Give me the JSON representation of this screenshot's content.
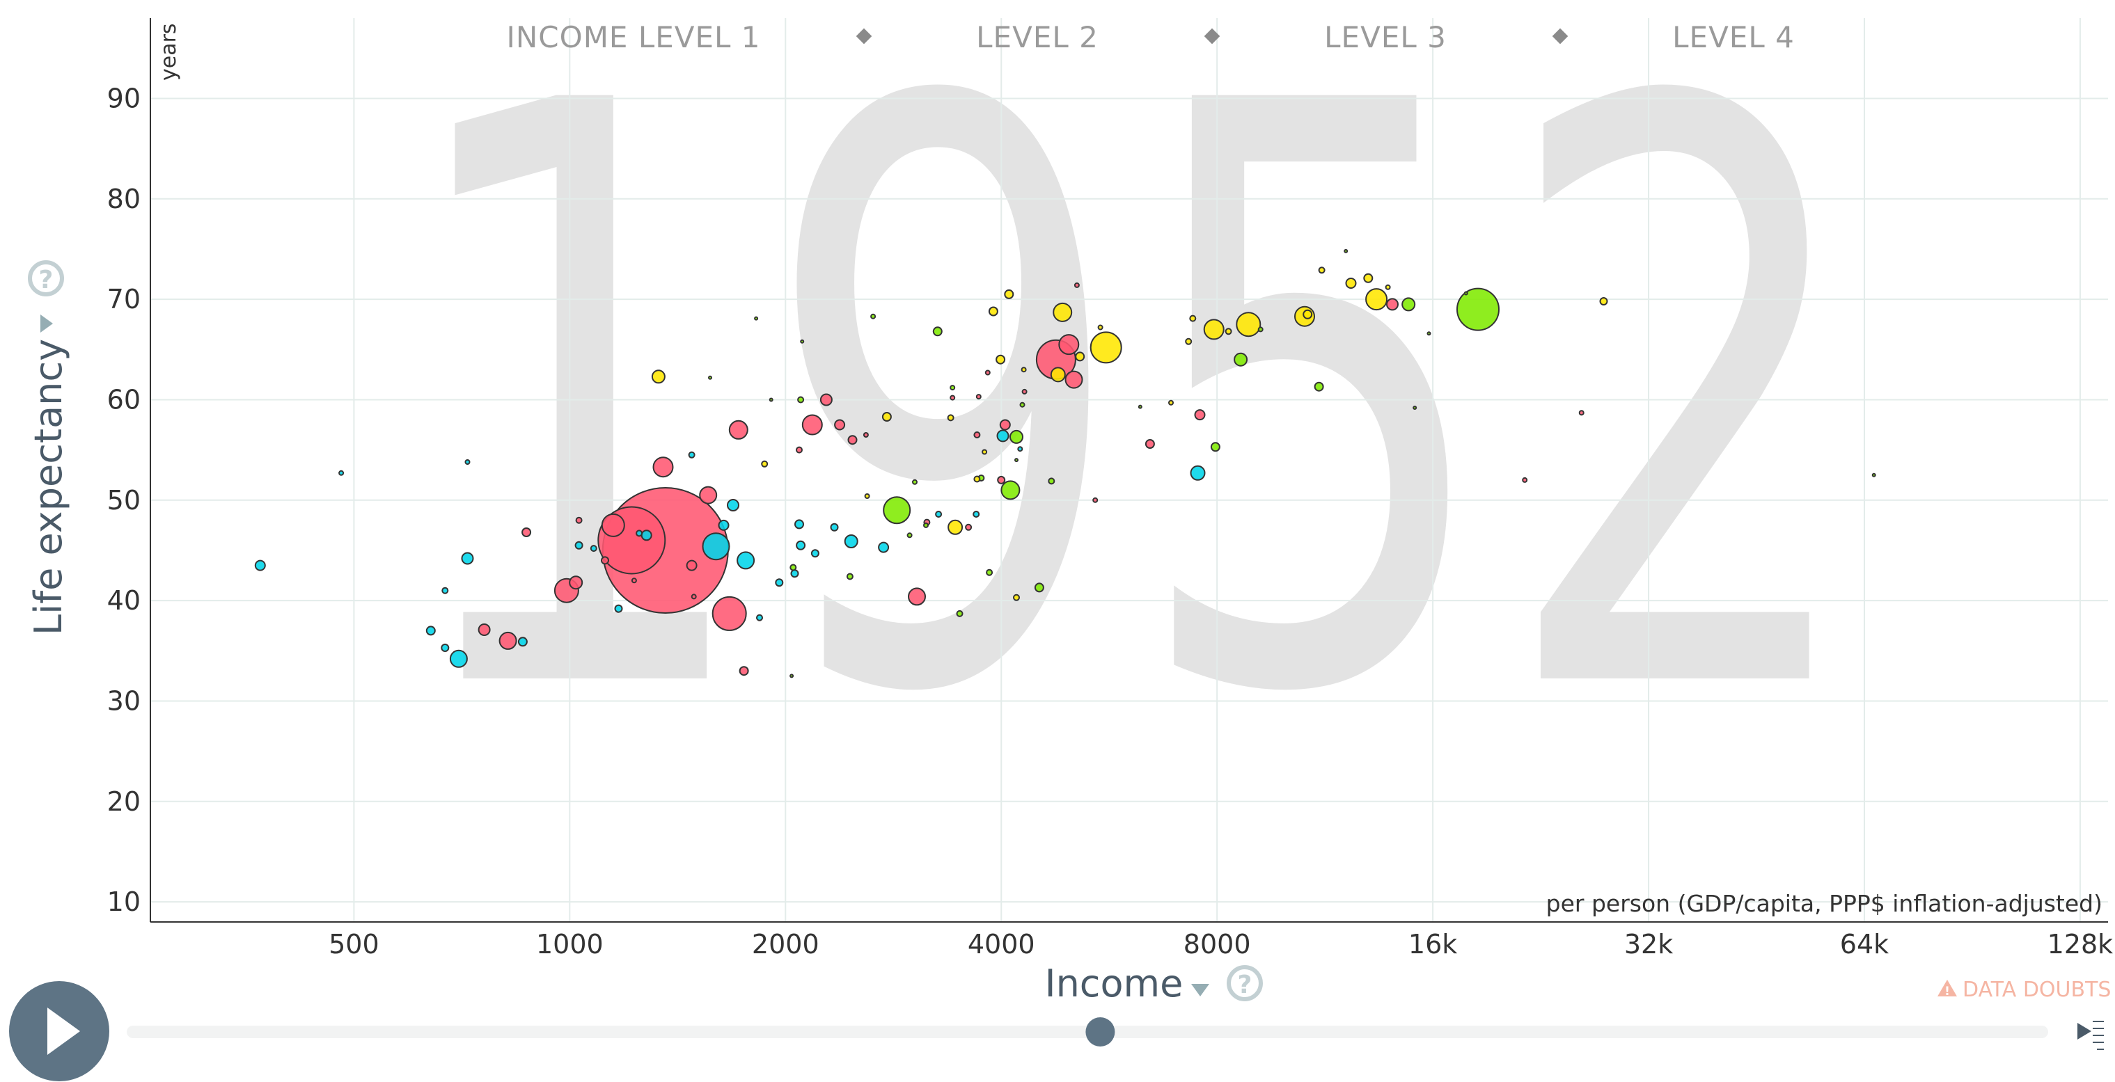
{
  "chart_data": {
    "type": "scatter",
    "title": "",
    "year": "1952",
    "xlabel": "Income",
    "x_unit": "per person (GDP/capita, PPP$ inflation-adjusted)",
    "ylabel": "Life expectancy",
    "y_unit": "years",
    "x_scale": "log2",
    "xlim": [
      260,
      140000
    ],
    "ylim": [
      8,
      98
    ],
    "x_ticks": [
      {
        "value": 500,
        "label": "500"
      },
      {
        "value": 1000,
        "label": "1000"
      },
      {
        "value": 2000,
        "label": "2000"
      },
      {
        "value": 4000,
        "label": "4000"
      },
      {
        "value": 8000,
        "label": "8000"
      },
      {
        "value": 16000,
        "label": "16k"
      },
      {
        "value": 32000,
        "label": "32k"
      },
      {
        "value": 64000,
        "label": "64k"
      },
      {
        "value": 128000,
        "label": "128k"
      }
    ],
    "y_ticks": [
      {
        "value": 10,
        "label": "10"
      },
      {
        "value": 20,
        "label": "20"
      },
      {
        "value": 30,
        "label": "30"
      },
      {
        "value": 40,
        "label": "40"
      },
      {
        "value": 50,
        "label": "50"
      },
      {
        "value": 60,
        "label": "60"
      },
      {
        "value": 70,
        "label": "70"
      },
      {
        "value": 80,
        "label": "80"
      },
      {
        "value": 90,
        "label": "90"
      }
    ],
    "grid": true,
    "income_levels": [
      "INCOME LEVEL 1",
      "LEVEL 2",
      "LEVEL 3",
      "LEVEL 4"
    ],
    "colors": {
      "africa": "#00d5e9",
      "asia": "#ff5872",
      "americas": "#7feb00",
      "europe": "#ffe700",
      "stroke": "#333333",
      "grid": "#e3ecea",
      "watermark": "#e3e3e3"
    },
    "series": [
      {
        "color": "#ff5872",
        "points": [
          {
            "x": 1360,
            "y": 45,
            "s": 90
          },
          {
            "x": 1220,
            "y": 46,
            "s": 48
          },
          {
            "x": 1150,
            "y": 47.5,
            "s": 16
          },
          {
            "x": 1350,
            "y": 53.3,
            "s": 14
          },
          {
            "x": 1560,
            "y": 50.5,
            "s": 12
          },
          {
            "x": 1720,
            "y": 57,
            "s": 13
          },
          {
            "x": 1670,
            "y": 38.7,
            "s": 24
          },
          {
            "x": 990,
            "y": 41,
            "s": 17
          },
          {
            "x": 1020,
            "y": 41.8,
            "s": 9
          },
          {
            "x": 760,
            "y": 37.1,
            "s": 8
          },
          {
            "x": 820,
            "y": 36,
            "s": 12
          },
          {
            "x": 1480,
            "y": 43.5,
            "s": 7
          },
          {
            "x": 2180,
            "y": 57.5,
            "s": 14
          },
          {
            "x": 2280,
            "y": 60,
            "s": 8
          },
          {
            "x": 2380,
            "y": 57.5,
            "s": 7
          },
          {
            "x": 2480,
            "y": 56,
            "s": 6
          },
          {
            "x": 3050,
            "y": 40.4,
            "s": 12
          },
          {
            "x": 1750,
            "y": 33,
            "s": 6
          },
          {
            "x": 4770,
            "y": 64,
            "s": 28
          },
          {
            "x": 4970,
            "y": 65.5,
            "s": 14
          },
          {
            "x": 5050,
            "y": 62,
            "s": 12
          },
          {
            "x": 4050,
            "y": 57.5,
            "s": 7
          },
          {
            "x": 6450,
            "y": 55.6,
            "s": 6
          },
          {
            "x": 7570,
            "y": 58.5,
            "s": 7
          },
          {
            "x": 14050,
            "y": 69.5,
            "s": 8
          },
          {
            "x": 4000,
            "y": 52,
            "s": 5
          },
          {
            "x": 870,
            "y": 46.8,
            "s": 6
          },
          {
            "x": 1120,
            "y": 44,
            "s": 5
          },
          {
            "x": 1030,
            "y": 48,
            "s": 4
          },
          {
            "x": 3600,
            "y": 47.3,
            "s": 4
          },
          {
            "x": 3150,
            "y": 47.8,
            "s": 4
          },
          {
            "x": 3700,
            "y": 56.5,
            "s": 4
          },
          {
            "x": 1230,
            "y": 42,
            "s": 3
          },
          {
            "x": 2090,
            "y": 55,
            "s": 4
          },
          {
            "x": 25800,
            "y": 58.7,
            "s": 3
          },
          {
            "x": 21500,
            "y": 52,
            "s": 3
          }
        ]
      },
      {
        "color": "#00d5e9",
        "points": [
          {
            "x": 1600,
            "y": 45.4,
            "s": 19
          },
          {
            "x": 1760,
            "y": 44,
            "s": 12
          },
          {
            "x": 1690,
            "y": 49.5,
            "s": 8
          },
          {
            "x": 1640,
            "y": 47.5,
            "s": 7
          },
          {
            "x": 1280,
            "y": 46.5,
            "s": 7
          },
          {
            "x": 700,
            "y": 34.2,
            "s": 12
          },
          {
            "x": 720,
            "y": 44.2,
            "s": 8
          },
          {
            "x": 370,
            "y": 43.5,
            "s": 7
          },
          {
            "x": 2090,
            "y": 47.6,
            "s": 6
          },
          {
            "x": 2100,
            "y": 45.5,
            "s": 6
          },
          {
            "x": 2470,
            "y": 45.9,
            "s": 9
          },
          {
            "x": 2740,
            "y": 45.3,
            "s": 7
          },
          {
            "x": 2340,
            "y": 47.3,
            "s": 5
          },
          {
            "x": 2200,
            "y": 44.7,
            "s": 5
          },
          {
            "x": 2060,
            "y": 42.7,
            "s": 5
          },
          {
            "x": 1960,
            "y": 41.8,
            "s": 5
          },
          {
            "x": 4020,
            "y": 56.4,
            "s": 8
          },
          {
            "x": 7520,
            "y": 52.7,
            "s": 10
          },
          {
            "x": 640,
            "y": 37,
            "s": 6
          },
          {
            "x": 860,
            "y": 35.9,
            "s": 6
          },
          {
            "x": 670,
            "y": 35.3,
            "s": 5
          },
          {
            "x": 1030,
            "y": 45.5,
            "s": 5
          },
          {
            "x": 1170,
            "y": 39.2,
            "s": 5
          },
          {
            "x": 1840,
            "y": 38.3,
            "s": 4
          },
          {
            "x": 1080,
            "y": 45.2,
            "s": 4
          },
          {
            "x": 670,
            "y": 41,
            "s": 4
          },
          {
            "x": 480,
            "y": 52.7,
            "s": 3
          },
          {
            "x": 1480,
            "y": 54.5,
            "s": 4
          },
          {
            "x": 720,
            "y": 53.8,
            "s": 3
          },
          {
            "x": 3690,
            "y": 48.6,
            "s": 4
          },
          {
            "x": 3270,
            "y": 48.6,
            "s": 4
          },
          {
            "x": 4250,
            "y": 55.1,
            "s": 3
          },
          {
            "x": 1250,
            "y": 46.7,
            "s": 4
          }
        ]
      },
      {
        "color": "#7feb00",
        "points": [
          {
            "x": 18500,
            "y": 69,
            "s": 30
          },
          {
            "x": 2860,
            "y": 49,
            "s": 19
          },
          {
            "x": 4120,
            "y": 51,
            "s": 13
          },
          {
            "x": 8630,
            "y": 64,
            "s": 9
          },
          {
            "x": 4200,
            "y": 56.3,
            "s": 9
          },
          {
            "x": 3260,
            "y": 66.8,
            "s": 6
          },
          {
            "x": 11100,
            "y": 61.3,
            "s": 6
          },
          {
            "x": 7960,
            "y": 55.3,
            "s": 6
          },
          {
            "x": 4520,
            "y": 41.3,
            "s": 6
          },
          {
            "x": 14800,
            "y": 69.5,
            "s": 9
          },
          {
            "x": 2100,
            "y": 60,
            "s": 4
          },
          {
            "x": 2460,
            "y": 42.4,
            "s": 4
          },
          {
            "x": 2050,
            "y": 43.3,
            "s": 4
          },
          {
            "x": 3500,
            "y": 38.7,
            "s": 4
          },
          {
            "x": 3850,
            "y": 42.8,
            "s": 4
          },
          {
            "x": 4700,
            "y": 51.9,
            "s": 4
          },
          {
            "x": 3140,
            "y": 47.5,
            "s": 3
          },
          {
            "x": 3420,
            "y": 61.2,
            "s": 3
          },
          {
            "x": 4280,
            "y": 59.5,
            "s": 3
          },
          {
            "x": 9200,
            "y": 67,
            "s": 3
          },
          {
            "x": 3750,
            "y": 52.2,
            "s": 4
          },
          {
            "x": 2980,
            "y": 46.5,
            "s": 3
          },
          {
            "x": 2650,
            "y": 68.3,
            "s": 3
          },
          {
            "x": 3030,
            "y": 51.8,
            "s": 3
          }
        ]
      },
      {
        "color": "#ffe700",
        "points": [
          {
            "x": 5600,
            "y": 65.2,
            "s": 22
          },
          {
            "x": 8850,
            "y": 67.5,
            "s": 17
          },
          {
            "x": 7920,
            "y": 67,
            "s": 14
          },
          {
            "x": 10600,
            "y": 68.3,
            "s": 14
          },
          {
            "x": 13350,
            "y": 70,
            "s": 15
          },
          {
            "x": 4870,
            "y": 68.7,
            "s": 13
          },
          {
            "x": 3450,
            "y": 47.3,
            "s": 10
          },
          {
            "x": 1330,
            "y": 62.3,
            "s": 9
          },
          {
            "x": 4800,
            "y": 62.5,
            "s": 10
          },
          {
            "x": 12300,
            "y": 71.6,
            "s": 7
          },
          {
            "x": 13000,
            "y": 72.1,
            "s": 6
          },
          {
            "x": 4100,
            "y": 70.5,
            "s": 6
          },
          {
            "x": 3900,
            "y": 68.8,
            "s": 6
          },
          {
            "x": 10700,
            "y": 68.5,
            "s": 6
          },
          {
            "x": 5150,
            "y": 64.3,
            "s": 6
          },
          {
            "x": 2770,
            "y": 58.3,
            "s": 6
          },
          {
            "x": 3990,
            "y": 64,
            "s": 6
          },
          {
            "x": 7400,
            "y": 68.1,
            "s": 4
          },
          {
            "x": 27700,
            "y": 69.8,
            "s": 5
          },
          {
            "x": 8300,
            "y": 66.8,
            "s": 4
          },
          {
            "x": 11200,
            "y": 72.9,
            "s": 4
          },
          {
            "x": 4200,
            "y": 40.3,
            "s": 4
          },
          {
            "x": 3700,
            "y": 52.1,
            "s": 4
          },
          {
            "x": 3400,
            "y": 58.2,
            "s": 4
          },
          {
            "x": 3790,
            "y": 54.8,
            "s": 3
          },
          {
            "x": 7300,
            "y": 65.8,
            "s": 4
          },
          {
            "x": 13850,
            "y": 71.2,
            "s": 3
          },
          {
            "x": 1870,
            "y": 53.6,
            "s": 4
          },
          {
            "x": 5500,
            "y": 67.2,
            "s": 3
          },
          {
            "x": 4300,
            "y": 63,
            "s": 3
          },
          {
            "x": 6900,
            "y": 59.7,
            "s": 3
          },
          {
            "x": 2600,
            "y": 50.4,
            "s": 3
          }
        ]
      },
      {
        "color": "#ff5872",
        "points": [
          {
            "x": 5100,
            "y": 71.4,
            "s": 3
          },
          {
            "x": 3830,
            "y": 62.7,
            "s": 3
          },
          {
            "x": 4310,
            "y": 60.8,
            "s": 3
          },
          {
            "x": 3720,
            "y": 60.3,
            "s": 3
          },
          {
            "x": 3420,
            "y": 60.2,
            "s": 3
          },
          {
            "x": 2590,
            "y": 56.5,
            "s": 3
          },
          {
            "x": 5410,
            "y": 50,
            "s": 3
          },
          {
            "x": 1490,
            "y": 40.4,
            "s": 3
          }
        ]
      },
      {
        "color": "#7feb00",
        "points": [
          {
            "x": 1820,
            "y": 68.1,
            "s": 2
          },
          {
            "x": 2110,
            "y": 65.8,
            "s": 2
          },
          {
            "x": 12100,
            "y": 74.8,
            "s": 2
          },
          {
            "x": 17800,
            "y": 70.6,
            "s": 2
          },
          {
            "x": 15800,
            "y": 66.6,
            "s": 2
          },
          {
            "x": 15100,
            "y": 59.2,
            "s": 2
          },
          {
            "x": 2040,
            "y": 32.5,
            "s": 2
          },
          {
            "x": 66000,
            "y": 52.5,
            "s": 2
          },
          {
            "x": 1910,
            "y": 60,
            "s": 2
          },
          {
            "x": 1570,
            "y": 62.2,
            "s": 2
          },
          {
            "x": 6250,
            "y": 59.3,
            "s": 2
          },
          {
            "x": 4200,
            "y": 54,
            "s": 2
          }
        ]
      }
    ]
  },
  "doubts_label": "DATA DOUBTS",
  "timeline": {
    "start_year": 1800,
    "end_year": 2100,
    "current_year": 1952
  }
}
